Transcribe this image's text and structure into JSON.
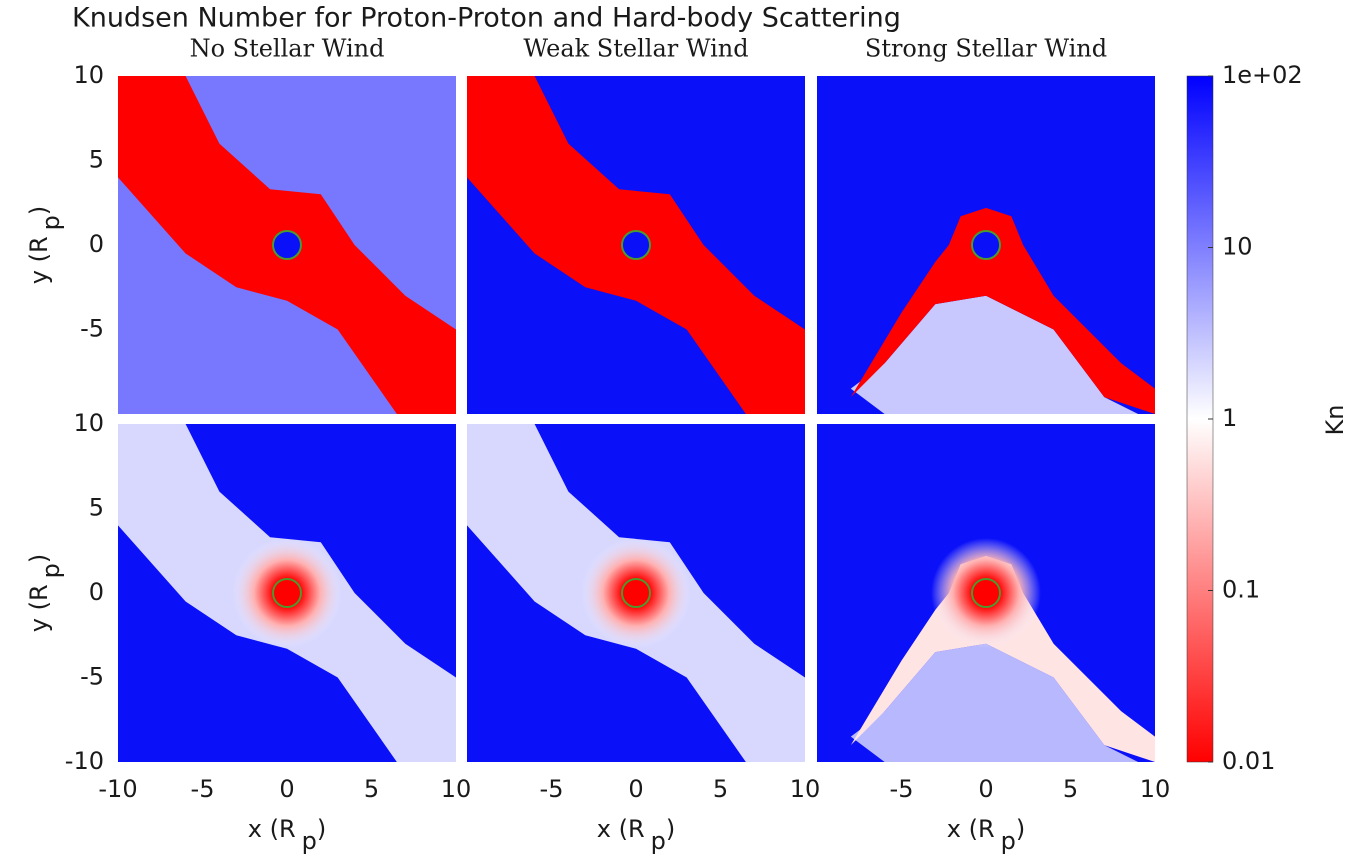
{
  "chart_data": {
    "type": "heatmap",
    "title": "Knudsen Number for Proton-Proton and Hard-body Scattering",
    "panel_titles": [
      "No Stellar Wind",
      "Weak Stellar Wind",
      "Strong Stellar Wind"
    ],
    "xlabel": [
      "x (R",
      "p",
      ")"
    ],
    "ylabel": [
      "y (R",
      "p",
      ")"
    ],
    "xlim": [
      -10,
      10
    ],
    "xticks": [
      -10,
      -5,
      0,
      5,
      10
    ],
    "ylim": [
      -10,
      10
    ],
    "yticks": [
      -10,
      -5,
      0,
      5,
      10
    ],
    "colorbar": {
      "label": "Kn",
      "scale": "log",
      "lim": [
        0.01,
        100
      ],
      "ticks": [
        0.01,
        0.1,
        1,
        10,
        {
          "value": 100,
          "label": "1e+02"
        }
      ],
      "colors": [
        "#ff0000",
        "#ffffff",
        "#0000ff"
      ]
    }
  }
}
